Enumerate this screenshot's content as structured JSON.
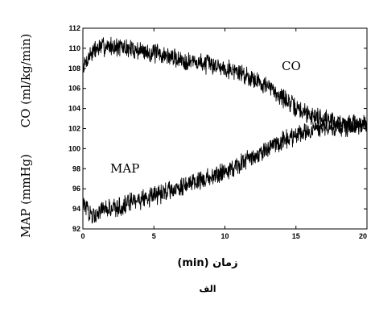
{
  "chart_data": {
    "type": "line",
    "xlabel": "زمان (min)",
    "caption": "الف",
    "xlim": [
      0,
      20
    ],
    "ylim": [
      92,
      112
    ],
    "xticks": [
      0,
      5,
      10,
      15,
      20
    ],
    "yticks": [
      92,
      94,
      96,
      98,
      100,
      102,
      104,
      106,
      108,
      110,
      112
    ],
    "ylabel_top": "CO (ml/kg/min)",
    "ylabel_bottom": "MAP (mmHg)",
    "grid": false,
    "series": [
      {
        "name": "CO",
        "x": [
          0,
          0.5,
          1,
          1.5,
          2,
          3,
          4,
          5,
          6,
          7,
          8,
          9,
          10,
          11,
          12,
          13,
          14,
          15,
          16,
          17,
          18,
          19,
          20
        ],
        "y": [
          108,
          109.4,
          110,
          110.2,
          110.2,
          110,
          109.8,
          109.5,
          109.2,
          108.8,
          108.6,
          108.4,
          108.1,
          107.6,
          107.0,
          106.2,
          105.2,
          104.0,
          103.4,
          103.0,
          102.6,
          102.3,
          102.4
        ]
      },
      {
        "name": "MAP",
        "x": [
          0,
          0.5,
          1,
          2,
          3,
          4,
          5,
          6,
          7,
          8,
          9,
          10,
          11,
          12,
          13,
          14,
          15,
          16,
          17,
          18,
          19,
          20
        ],
        "y": [
          94.5,
          93.5,
          93.6,
          94.0,
          94.4,
          94.9,
          95.3,
          95.8,
          96.3,
          96.8,
          97.2,
          97.8,
          98.4,
          99.1,
          99.9,
          100.7,
          101.4,
          101.8,
          102.1,
          102.2,
          102.3,
          102.5
        ]
      }
    ]
  }
}
